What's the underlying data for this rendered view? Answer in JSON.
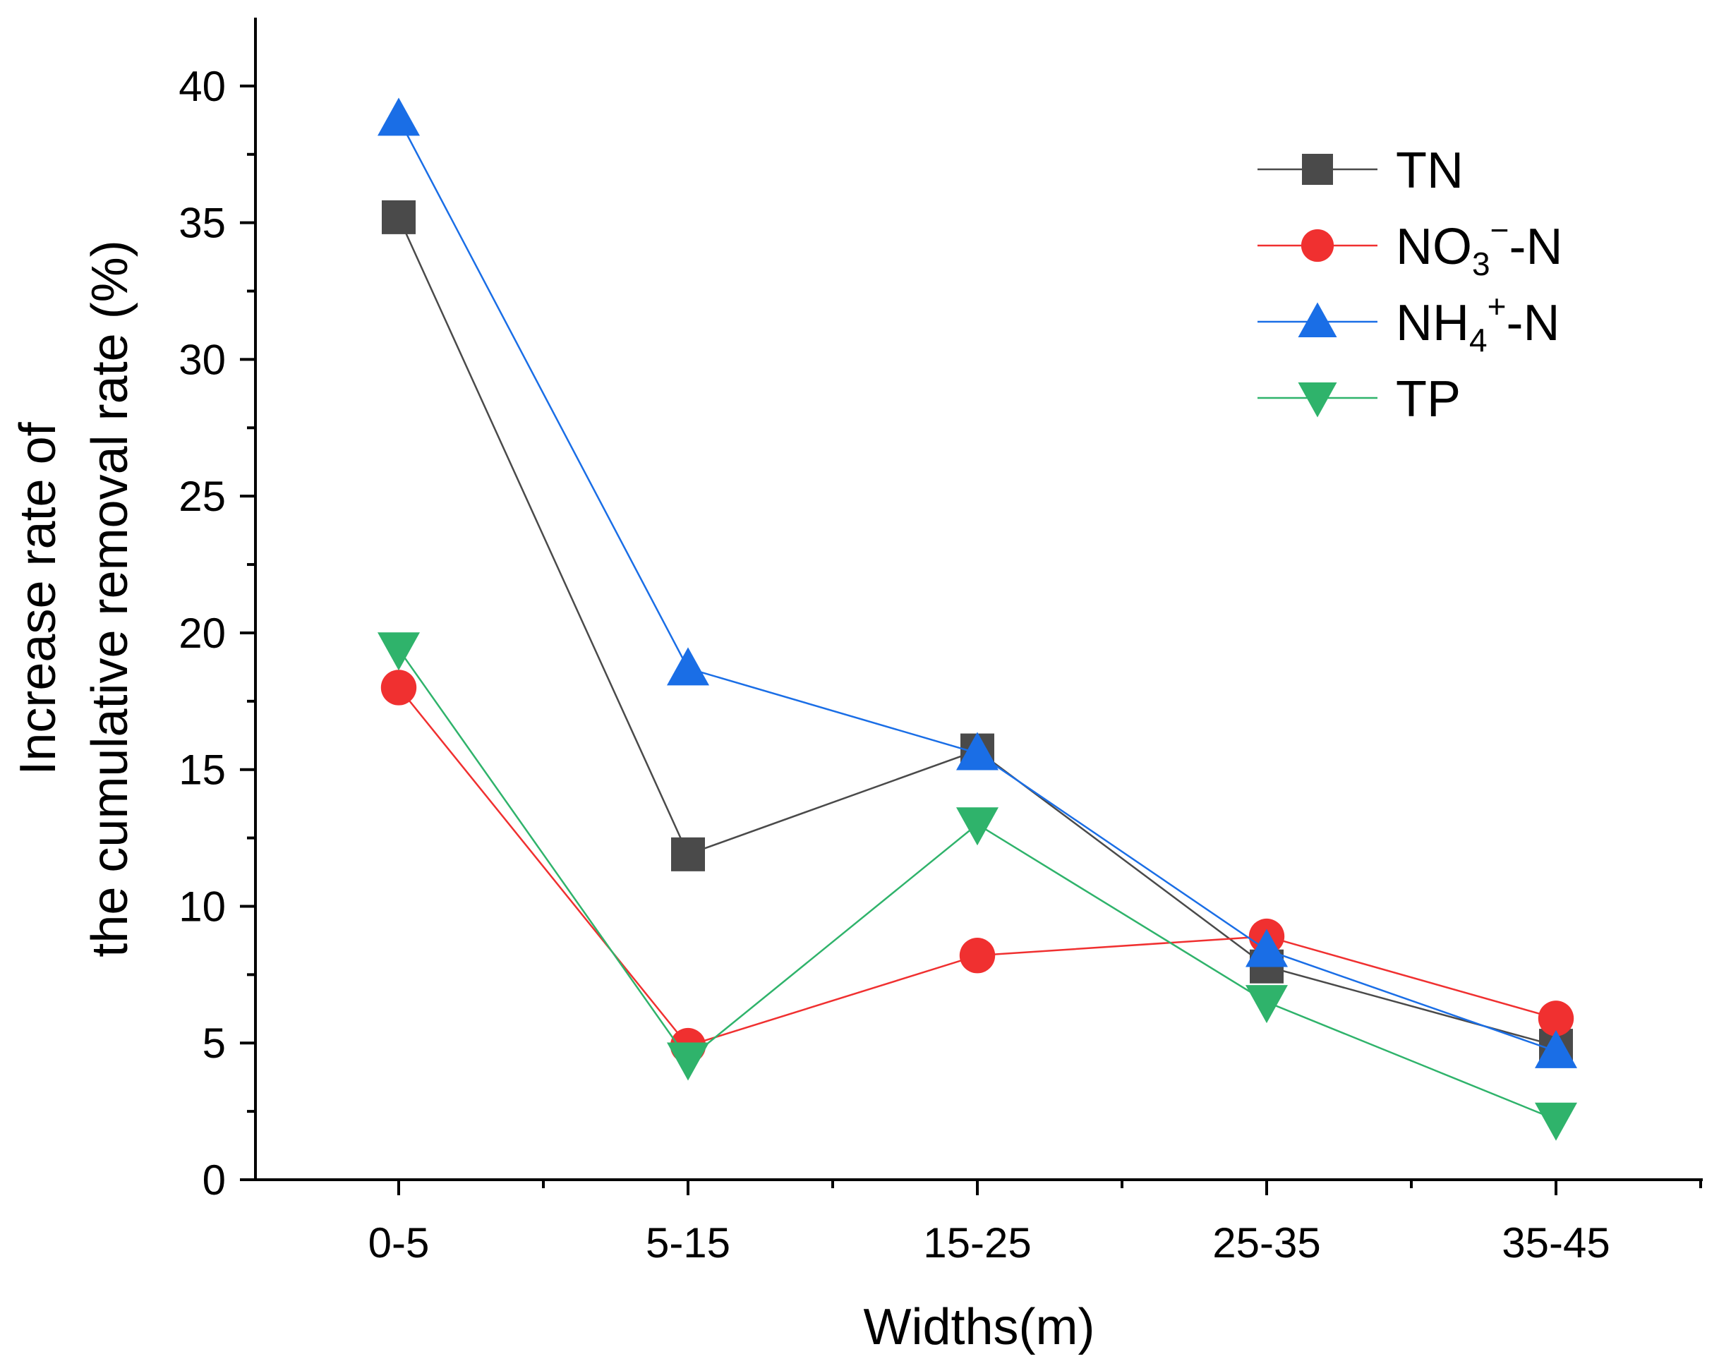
{
  "chart_data": {
    "type": "line",
    "title": "",
    "xlabel": "Widths(m)",
    "ylabel_line1": "Increase rate of",
    "ylabel_line2": "the cumulative removal rate (%)",
    "categories": [
      "0-5",
      "5-15",
      "15-25",
      "25-35",
      "35-45"
    ],
    "ylim": [
      0,
      42.5
    ],
    "yticks": [
      0,
      5,
      10,
      15,
      20,
      25,
      30,
      35,
      40
    ],
    "grid": false,
    "legend_position": "top-right",
    "series": [
      {
        "name": "TN",
        "label_main": "TN",
        "label_sub": "",
        "label_sup": "",
        "label_tail": "",
        "marker": "square",
        "color": "#4a4a4a",
        "values": [
          35.2,
          11.9,
          15.7,
          7.8,
          4.9
        ]
      },
      {
        "name": "NO3−-N",
        "label_main": "NO",
        "label_sub": "3",
        "label_sup": "−",
        "label_tail": "-N",
        "marker": "circle",
        "color": "#f03030",
        "values": [
          18.0,
          4.9,
          8.2,
          8.9,
          5.9
        ]
      },
      {
        "name": "NH4+-N",
        "label_main": "NH",
        "label_sub": "4",
        "label_sup": "+",
        "label_tail": "-N",
        "marker": "triangle-up",
        "color": "#1a6ee6",
        "values": [
          38.8,
          18.7,
          15.6,
          8.4,
          4.7
        ]
      },
      {
        "name": "TP",
        "label_main": "TP",
        "label_sub": "",
        "label_sup": "",
        "label_tail": "",
        "marker": "triangle-down",
        "color": "#2fb36b",
        "values": [
          19.4,
          4.4,
          13.0,
          6.5,
          2.2
        ]
      }
    ]
  }
}
